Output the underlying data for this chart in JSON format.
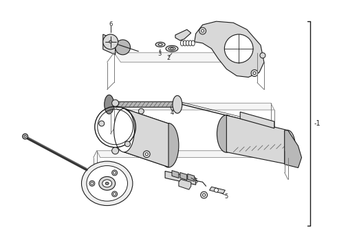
{
  "bg_color": "#ffffff",
  "line_color": "#1a1a1a",
  "gray_light": "#d8d8d8",
  "gray_mid": "#b8b8b8",
  "gray_dark": "#909090",
  "fig_width": 4.9,
  "fig_height": 3.6,
  "dpi": 100
}
